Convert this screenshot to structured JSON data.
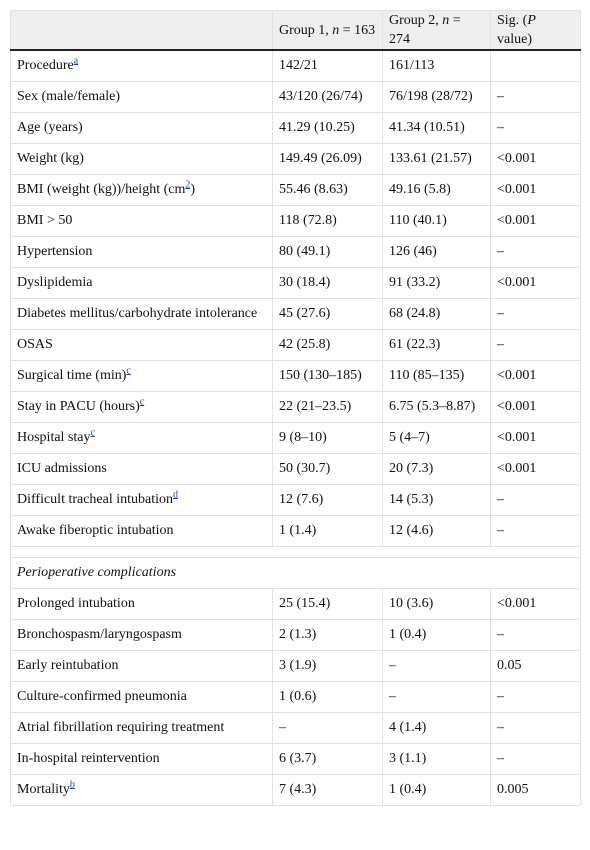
{
  "table": {
    "header": [
      {
        "text": "Group 1, ",
        "italic": "n",
        "suffix": " = 163"
      },
      {
        "text": "Group 2, ",
        "italic": "n",
        "suffix": " = 274"
      },
      {
        "text": "Sig. (",
        "italic": "P",
        "suffix": " value)"
      }
    ],
    "rows": [
      {
        "label": "Procedure",
        "sup": "a",
        "group1": "142/21",
        "group2": "161/113"
      },
      {
        "label": "Sex (male/female)",
        "group1": "43/120 (26/74)",
        "group2": "76/198 (28/72)",
        "sig": "–"
      },
      {
        "label": "Age (years)",
        "group1": "41.29 (10.25)",
        "group2": "41.34 (10.51)",
        "sig": "–"
      },
      {
        "label": "Weight (kg)",
        "group1": "149.49 (26.09)",
        "group2": "133.61 (21.57)",
        "sig": "<0.001"
      },
      {
        "label": "BMI (weight (kg))/height (cm",
        "sup": "2",
        "suffix": ")",
        "group1": "55.46 (8.63)",
        "group2": "49.16 (5.8)",
        "sig": "<0.001"
      },
      {
        "label": "BMI > 50",
        "group1": "118 (72.8)",
        "group2": "110 (40.1)",
        "sig": "<0.001"
      },
      {
        "label": "Hypertension",
        "group1": "80 (49.1)",
        "group2": "126 (46)",
        "sig": "–"
      },
      {
        "label": "Dyslipidemia",
        "group1": "30 (18.4)",
        "group2": "91 (33.2)",
        "sig": "<0.001"
      },
      {
        "label": "Diabetes mellitus/carbohydrate intolerance",
        "group1": "45 (27.6)",
        "group2": "68 (24.8)",
        "sig": "–"
      },
      {
        "label": "OSAS",
        "group1": "42 (25.8)",
        "group2": "61 (22.3)",
        "sig": "–"
      },
      {
        "label": "Surgical time (min)",
        "sup": "c",
        "group1": "150 (130–185)",
        "group2": "110 (85–135)",
        "sig": "<0.001"
      },
      {
        "label": "Stay in PACU (hours)",
        "sup": "c",
        "group1": "22 (21–23.5)",
        "group2": "6.75 (5.3–8.87)",
        "sig": "<0.001"
      },
      {
        "label": "Hospital stay",
        "sup": "c",
        "group1": "9 (8–10)",
        "group2": "5 (4–7)",
        "sig": "<0.001"
      },
      {
        "label": "ICU admissions",
        "group1": "50 (30.7)",
        "group2": "20 (7.3)",
        "sig": "<0.001"
      },
      {
        "label": "Difficult tracheal intubation",
        "sup": "d",
        "group1": "12 (7.6)",
        "group2": "14 (5.3)",
        "sig": "–"
      },
      {
        "label": "Awake fiberoptic intubation",
        "group1": "1 (1.4)",
        "group2": "12 (4.6)",
        "sig": "–"
      },
      {
        "section": "Perioperative complications"
      },
      {
        "label": "Prolonged intubation",
        "group1": "25 (15.4)",
        "group2": "10 (3.6)",
        "sig": "<0.001"
      },
      {
        "label": "Bronchospasm/laryngospasm",
        "group1": "2 (1.3)",
        "group2": "1 (0.4)",
        "sig": "–"
      },
      {
        "label": "Early reintubation",
        "group1": "3 (1.9)",
        "group2": "–",
        "sig": "0.05"
      },
      {
        "label": "Culture-confirmed pneumonia",
        "group1": "1 (0.6)",
        "group2": "–",
        "sig": "–"
      },
      {
        "label": "Atrial fibrillation requiring treatment",
        "group1": "–",
        "group2": "4 (1.4)",
        "sig": "–"
      },
      {
        "label": "In-hospital reintervention",
        "group1": "6 (3.7)",
        "group2": "3 (1.1)",
        "sig": "–"
      },
      {
        "label": "Mortality",
        "sup": "b",
        "group1": "7 (4.3)",
        "group2": "1 (0.4)",
        "sig": "0.005"
      }
    ]
  }
}
